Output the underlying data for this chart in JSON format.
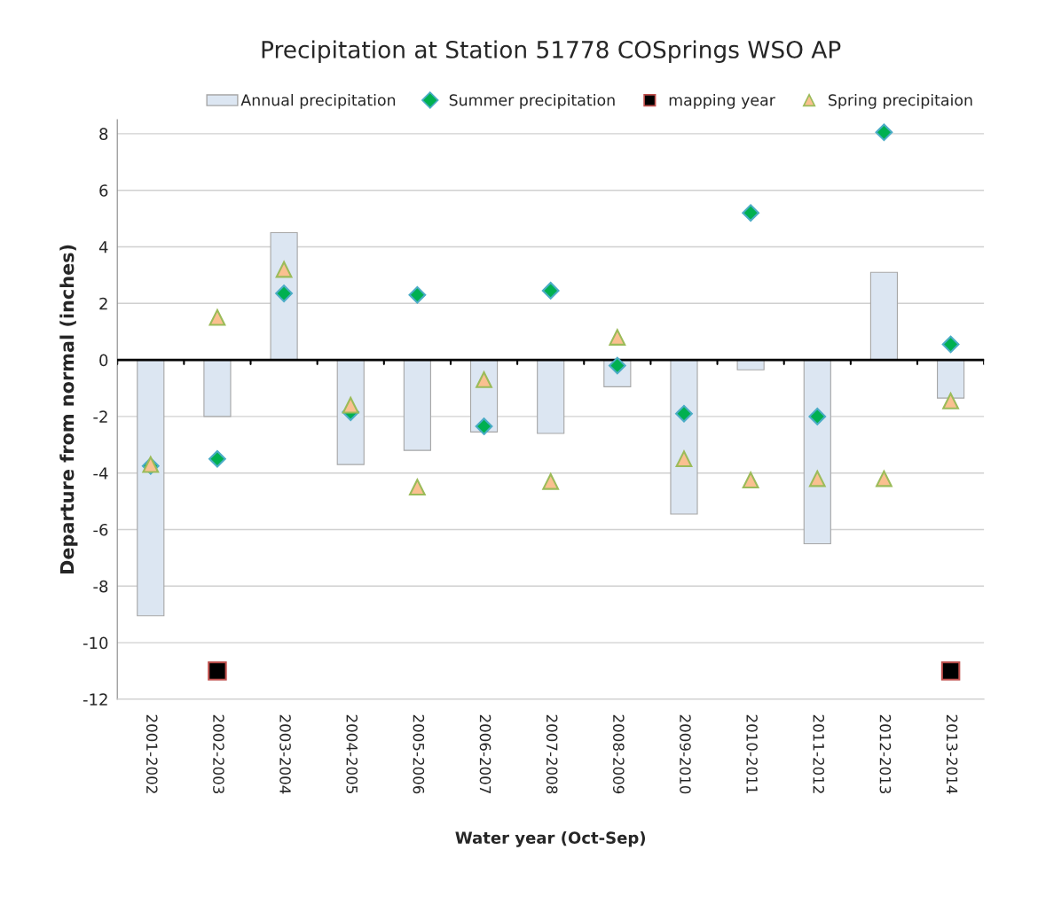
{
  "chart_data": {
    "type": "bar",
    "title": "Precipitation at Station 51778 COSprings WSO AP",
    "xlabel": "Water year (Oct-Sep)",
    "ylabel": "Departure from normal (inches)",
    "categories": [
      "2001-2002",
      "2002-2003",
      "2003-2004",
      "2004-2005",
      "2005-2006",
      "2006-2007",
      "2007-2008",
      "2008-2009",
      "2009-2010",
      "2010-2011",
      "2011-2012",
      "2012-2013",
      "2013-2014"
    ],
    "series": [
      {
        "name": "Annual precipitation",
        "color": "#dce6f2",
        "values": [
          -9.05,
          -2.0,
          4.5,
          -3.7,
          -3.2,
          -2.55,
          -2.6,
          -0.95,
          -5.45,
          -0.35,
          -6.5,
          3.1,
          -1.35
        ]
      },
      {
        "name": "Summer precipitation",
        "type": "scatter",
        "marker": "diamond",
        "color": "#00b050",
        "values": [
          -3.75,
          -3.5,
          2.35,
          -1.85,
          2.3,
          -2.35,
          2.45,
          -0.2,
          -1.9,
          5.2,
          -2.0,
          8.05,
          0.55
        ]
      },
      {
        "name": "mapping year",
        "type": "scatter",
        "marker": "square",
        "color": "#000000",
        "values": [
          null,
          -11,
          null,
          null,
          null,
          null,
          null,
          null,
          null,
          null,
          null,
          null,
          -11
        ]
      },
      {
        "name": "Spring precipitaion",
        "type": "scatter",
        "marker": "triangle",
        "color": "#fac090",
        "values": [
          -3.7,
          1.5,
          3.2,
          -1.6,
          -4.5,
          -0.7,
          -4.3,
          0.8,
          -3.5,
          -4.25,
          -4.2,
          -4.2,
          -1.45
        ]
      }
    ],
    "ylim": [
      -12,
      8.5
    ],
    "yticks": [
      -12,
      -10,
      -8,
      -6,
      -4,
      -2,
      0,
      2,
      4,
      6,
      8
    ],
    "grid": "y",
    "legend": "top"
  }
}
